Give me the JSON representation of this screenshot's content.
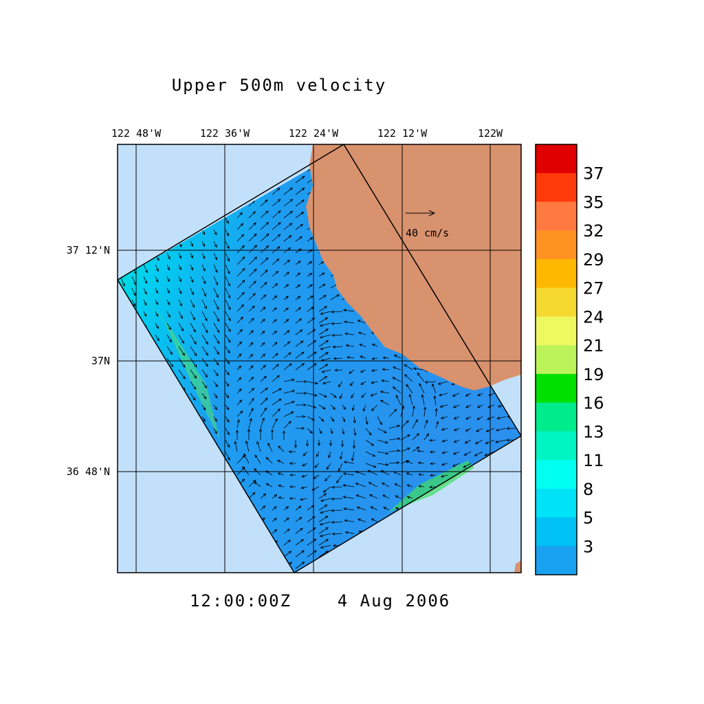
{
  "title": "Upper 500m velocity",
  "lon_labels": [
    "122 48'W",
    "122 36'W",
    "122 24'W",
    "122 12'W",
    "122W"
  ],
  "lat_labels": [
    "37 12'N",
    "37N",
    "36 48'N"
  ],
  "reference_vector": {
    "label": "40 cm/s"
  },
  "timestamp": {
    "time": "12:00:00Z",
    "date": "4 Aug 2006"
  },
  "colorbar": {
    "labels": [
      37,
      35,
      32,
      29,
      27,
      24,
      21,
      19,
      16,
      13,
      11,
      8,
      5,
      3
    ],
    "colors": [
      "#e00000",
      "#ff3a0a",
      "#ff7a40",
      "#ff9222",
      "#ffb800",
      "#f5d830",
      "#eef860",
      "#bdf35a",
      "#00e000",
      "#00ec8c",
      "#00f4c4",
      "#00fff0",
      "#00e2f8",
      "#00c0f4",
      "#1aa0f0"
    ]
  }
}
